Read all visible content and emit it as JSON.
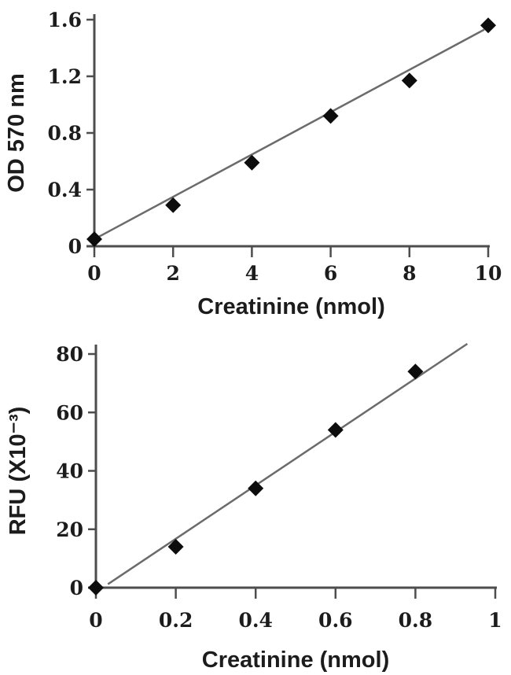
{
  "figure": {
    "background": "#ffffff",
    "description_colors": {
      "axis": "#4d4d4d",
      "trendline": "#6b6b6b",
      "marker": "#0d0d0d",
      "text": "#1c1c1c"
    }
  },
  "chart_data": [
    {
      "id": "od570-standard-curve",
      "type": "scatter",
      "title": "",
      "xlabel": "Creatinine (nmol)",
      "ylabel": "OD 570 nm",
      "xlim": [
        0,
        10
      ],
      "ylim": [
        0,
        1.6
      ],
      "xticks": [
        0,
        2,
        4,
        6,
        8,
        10
      ],
      "xtick_labels": [
        "0",
        "2",
        "4",
        "6",
        "8",
        "10"
      ],
      "yticks": [
        0,
        0.4,
        0.8,
        1.2,
        1.6
      ],
      "ytick_labels": [
        "0",
        "0.4",
        "0.8",
        "1.2",
        "1.6"
      ],
      "grid": false,
      "legend": null,
      "marker": "diamond",
      "points": [
        {
          "x": 0,
          "y": 0.05
        },
        {
          "x": 2,
          "y": 0.29
        },
        {
          "x": 4,
          "y": 0.59
        },
        {
          "x": 6,
          "y": 0.92
        },
        {
          "x": 8,
          "y": 1.17
        },
        {
          "x": 10,
          "y": 1.56
        }
      ],
      "trendline": {
        "x1": 0,
        "y1": 0.05,
        "x2": 9.9,
        "y2": 1.53
      },
      "colors": {
        "marker": "#0d0d0d",
        "line": "#6b6b6b",
        "axis": "#4d4d4d",
        "text": "#1c1c1c"
      }
    },
    {
      "id": "rfu-standard-curve",
      "type": "scatter",
      "title": "",
      "xlabel": "Creatinine (nmol)",
      "ylabel": "RFU (X10⁻³)",
      "xlim": [
        0,
        1
      ],
      "ylim": [
        0,
        80
      ],
      "xticks": [
        0,
        0.2,
        0.4,
        0.6,
        0.8,
        1
      ],
      "xtick_labels": [
        "0",
        "0.2",
        "0.4",
        "0.6",
        "0.8",
        "1"
      ],
      "yticks": [
        0,
        20,
        40,
        60,
        80
      ],
      "ytick_labels": [
        "0",
        "20",
        "40",
        "60",
        "80"
      ],
      "grid": false,
      "legend": null,
      "marker": "diamond",
      "points": [
        {
          "x": 0,
          "y": 0
        },
        {
          "x": 0.2,
          "y": 14
        },
        {
          "x": 0.4,
          "y": 34
        },
        {
          "x": 0.6,
          "y": 54
        },
        {
          "x": 0.8,
          "y": 74
        }
      ],
      "trendline": {
        "x1": 0.03,
        "y1": 1.2,
        "x2": 0.93,
        "y2": 83.5
      },
      "colors": {
        "marker": "#0d0d0d",
        "line": "#6b6b6b",
        "axis": "#4d4d4d",
        "text": "#1c1c1c"
      }
    }
  ]
}
